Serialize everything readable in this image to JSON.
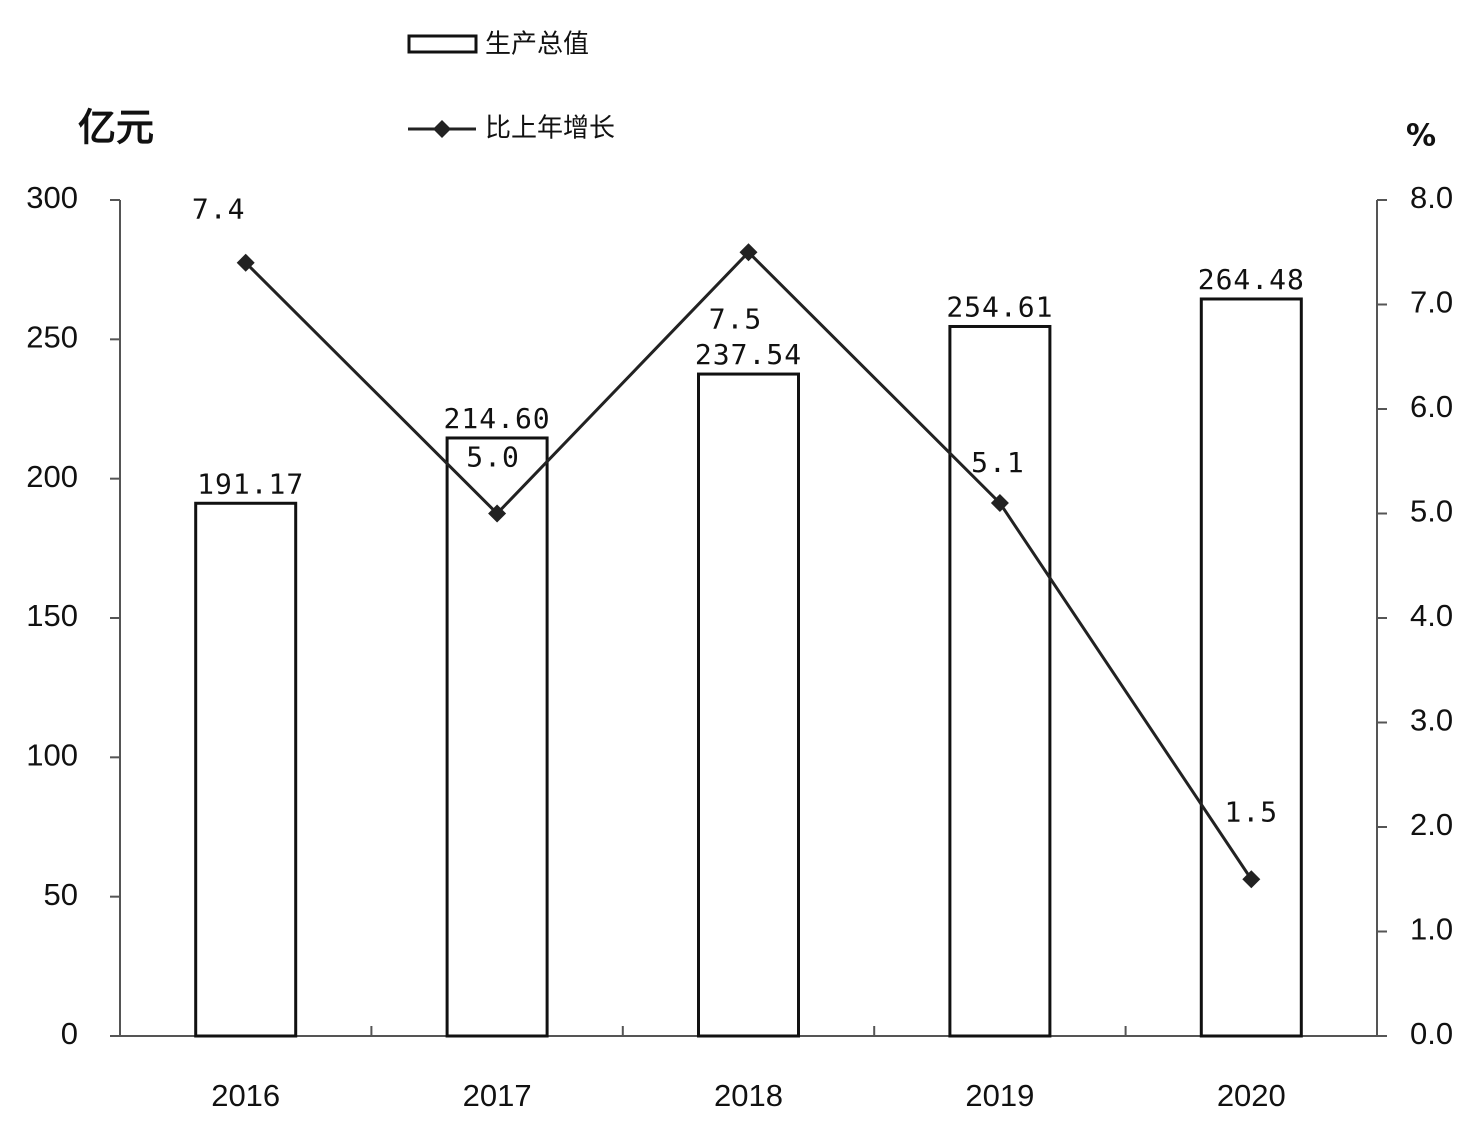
{
  "chart_data": {
    "type": "bar_line",
    "categories": [
      "2016",
      "2017",
      "2018",
      "2019",
      "2020"
    ],
    "y_label": "亿元",
    "y2_label": "%",
    "ylim": [
      0,
      300
    ],
    "yticks": [
      0,
      50,
      100,
      150,
      200,
      250,
      300
    ],
    "y2lim": [
      0,
      8
    ],
    "y2ticks": [
      {
        "value": 0,
        "label": "0.0"
      },
      {
        "value": 1,
        "label": "1.0"
      },
      {
        "value": 2,
        "label": "2.0"
      },
      {
        "value": 3,
        "label": "3.0"
      },
      {
        "value": 4,
        "label": "4.0"
      },
      {
        "value": 5,
        "label": "5.0"
      },
      {
        "value": 6,
        "label": "6.0"
      },
      {
        "value": 7,
        "label": "7.0"
      },
      {
        "value": 8,
        "label": "8.0"
      }
    ],
    "series": [
      {
        "name": "生产总值",
        "type": "bar",
        "color": "#ffffff",
        "values": [
          191.17,
          214.6,
          237.54,
          254.61,
          264.48
        ],
        "value_labels": [
          "191.17",
          "214.60",
          "237.54",
          "254.61",
          "264.48"
        ]
      },
      {
        "name": "比上年增长",
        "type": "line",
        "axis": "y2",
        "color": "#222222",
        "values": [
          7.4,
          5.0,
          7.5,
          5.1,
          1.5
        ],
        "value_labels": [
          "7.4",
          "5.0",
          "7.5",
          "5.1",
          "1.5"
        ]
      }
    ]
  }
}
